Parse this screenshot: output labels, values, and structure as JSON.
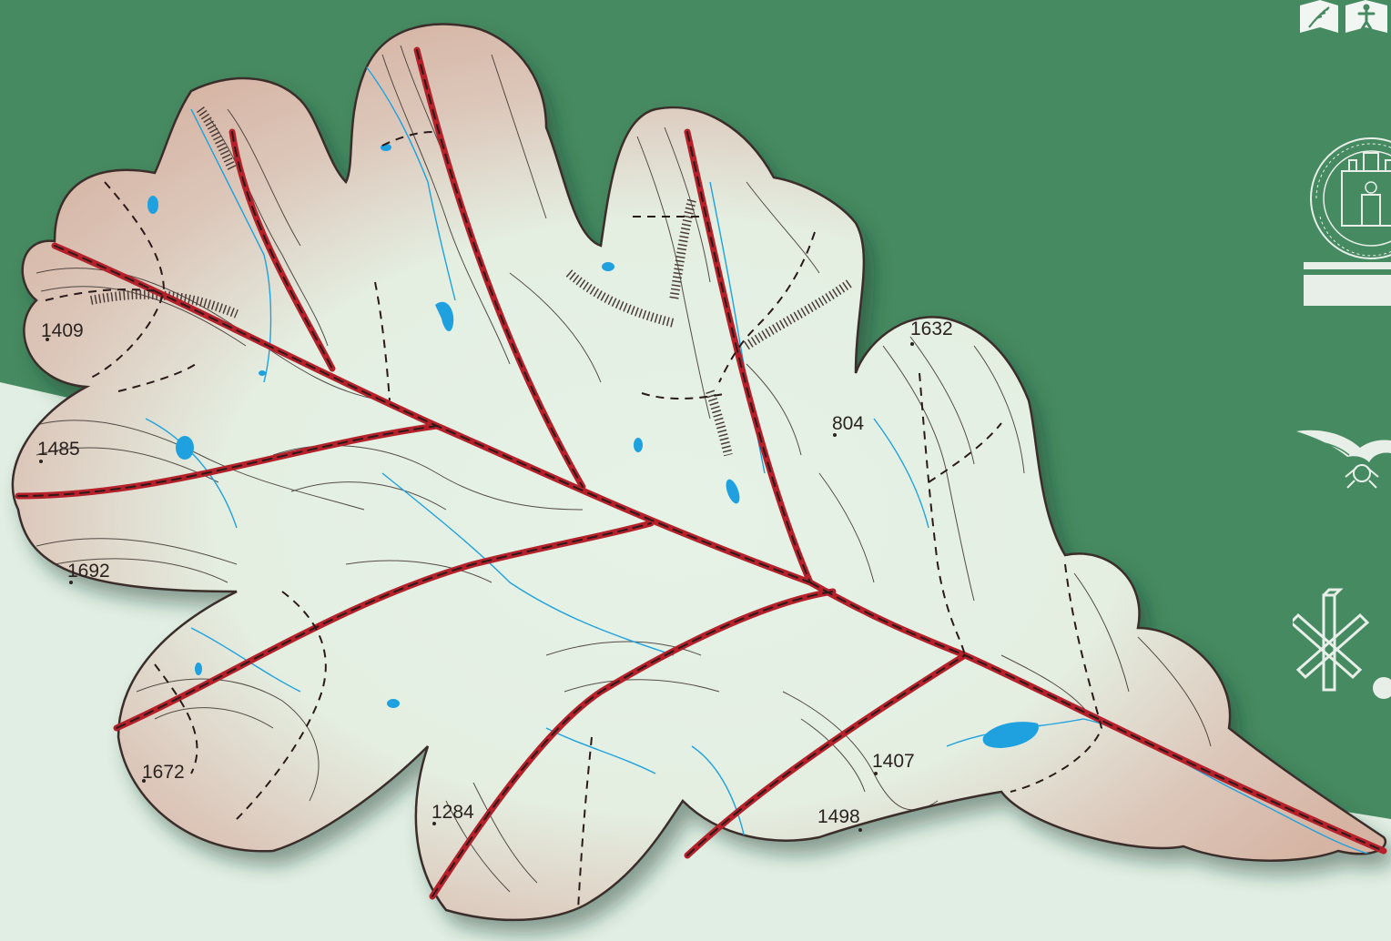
{
  "map": {
    "elevation_labels": [
      "1409",
      "1485",
      "1692",
      "1672",
      "1284",
      "1632",
      "804",
      "1407",
      "1498"
    ]
  },
  "colors": {
    "background_green": "#468a61",
    "background_light": "#e0eee3",
    "terrain_high": "#d9b9a9",
    "terrain_low": "#e4f1e4",
    "contour": "#3a302c",
    "trail_red": "#b5202a",
    "trail_dash": "#2b1a1a",
    "water": "#1ea1de"
  },
  "icons": {
    "top_right": [
      "wheat-icon",
      "person-icon"
    ],
    "crest": "city-seal-icon",
    "eagle": "eagle-emblem-icon",
    "snowflake": "snowflake-logo-icon"
  }
}
